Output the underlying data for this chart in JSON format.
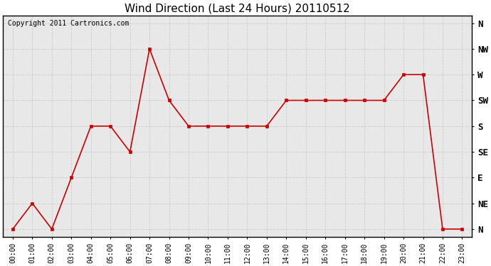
{
  "title": "Wind Direction (Last 24 Hours) 20110512",
  "copyright_text": "Copyright 2011 Cartronics.com",
  "hours": [
    "00:00",
    "01:00",
    "02:00",
    "03:00",
    "04:00",
    "05:00",
    "06:00",
    "07:00",
    "08:00",
    "09:00",
    "10:00",
    "11:00",
    "12:00",
    "13:00",
    "14:00",
    "15:00",
    "16:00",
    "17:00",
    "18:00",
    "19:00",
    "20:00",
    "21:00",
    "22:00",
    "23:00"
  ],
  "wind_values": [
    0,
    1,
    0,
    2,
    4,
    4,
    3,
    7,
    5,
    4,
    4,
    4,
    4,
    4,
    5,
    5,
    5,
    5,
    5,
    5,
    6,
    6,
    0,
    0
  ],
  "direction_labels": [
    "N",
    "NE",
    "E",
    "SE",
    "S",
    "SW",
    "W",
    "NW",
    "N"
  ],
  "direction_values": [
    0,
    1,
    2,
    3,
    4,
    5,
    6,
    7,
    8
  ],
  "line_color": "#cc0000",
  "marker_color": "#cc0000",
  "background_color": "#ffffff",
  "plot_bg_color": "#e8e8e8",
  "grid_color": "#cccccc",
  "title_fontsize": 11,
  "copyright_fontsize": 7,
  "ylabel_fontsize": 9,
  "xlabel_fontsize": 7
}
